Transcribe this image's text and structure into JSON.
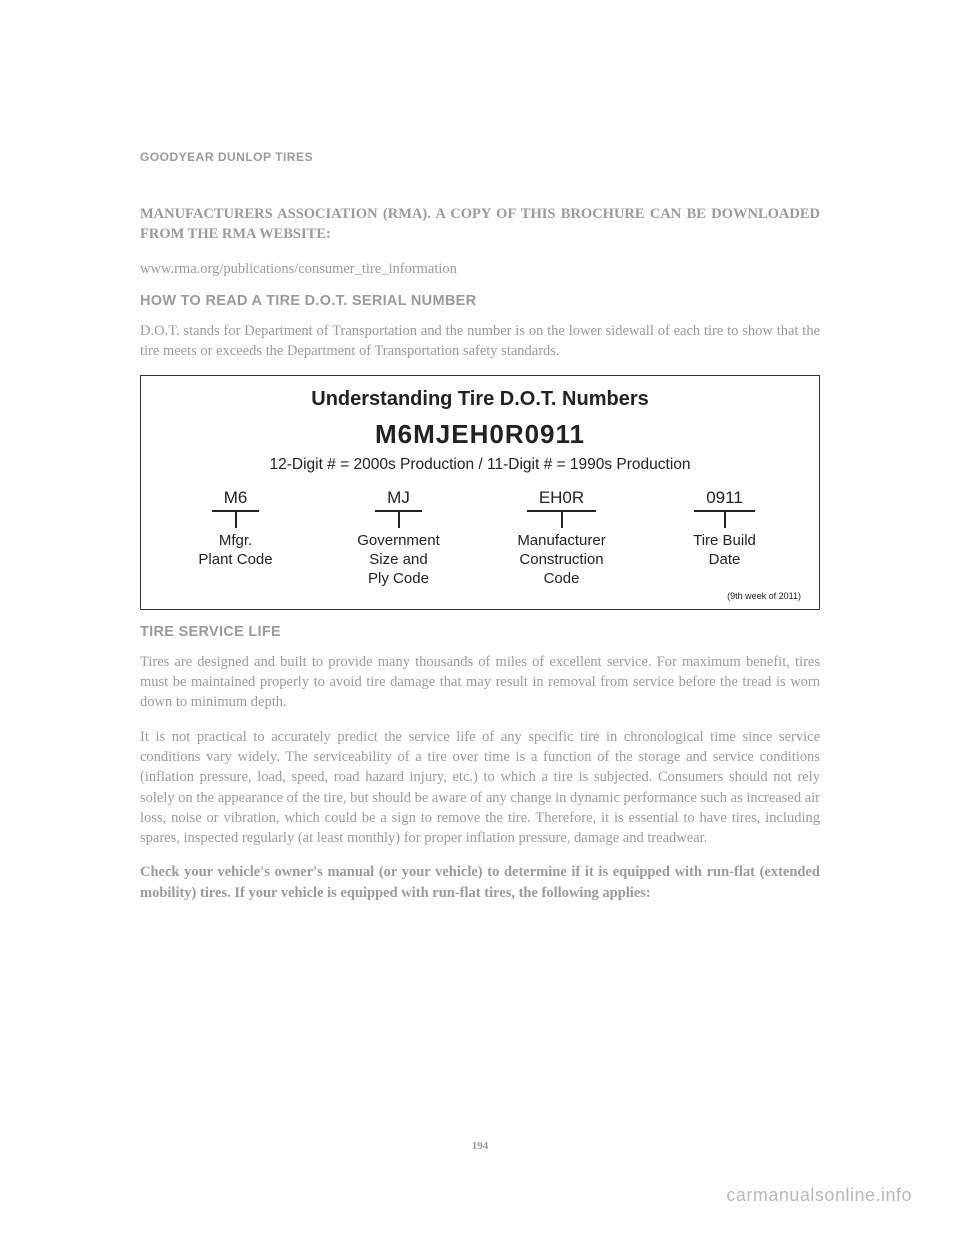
{
  "header": "GOODYEAR DUNLOP TIRES",
  "intro1": "MANUFACTURERS ASSOCIATION (RMA). A COPY OF THIS BROCHURE CAN BE DOWNLOADED FROM THE RMA WEBSITE:",
  "intro2": "www.rma.org/publications/consumer_tire_information",
  "h1": "HOW TO READ A TIRE D.O.T. SERIAL NUMBER",
  "p1": "D.O.T. stands for Department of Transportation and the number is on the lower sidewall of each tire to show that the tire meets or exceeds the Department of Transportation safety standards.",
  "diagram": {
    "title": "Understanding Tire D.O.T. Numbers",
    "code": "M6MJEH0R0911",
    "sub": "12-Digit # = 2000s Production / 11-Digit # = 1990s Production",
    "cols": [
      {
        "seg": "M6",
        "label": "Mfgr.\nPlant Code"
      },
      {
        "seg": "MJ",
        "label": "Government\nSize and\nPly Code"
      },
      {
        "seg": "EH0R",
        "label": "Manufacturer\nConstruction\nCode"
      },
      {
        "seg": "0911",
        "label": "Tire Build\nDate"
      }
    ],
    "footnote": "(9th week of 2011)"
  },
  "h2": "TIRE SERVICE LIFE",
  "p2": "Tires are designed and built to provide many thousands of miles of excellent service. For maximum benefit, tires must be maintained properly to avoid tire damage that may result in removal from service before the tread is worn down to minimum depth.",
  "p3": "It is not practical to accurately predict the service life of any specific tire in chronological time since service conditions vary widely. The serviceability of a tire over time is a function of the storage and service conditions (inflation pressure, load, speed, road hazard injury, etc.) to which a tire is subjected. Consumers should not rely solely on the appearance of the tire, but should be aware of any change in dynamic performance such as increased air loss, noise or vibration, which could be a sign to remove the tire. Therefore, it is essential to have tires, including spares, inspected regularly (at least monthly) for proper inflation pressure, damage and treadwear.",
  "p4": "Check your vehicle's owner's manual (or your vehicle) to determine if it is equipped with run-flat (extended mobility) tires. If your vehicle is equipped with run-flat tires, the following applies:",
  "pageNum": "194",
  "watermark": "carmanualsonline.info"
}
